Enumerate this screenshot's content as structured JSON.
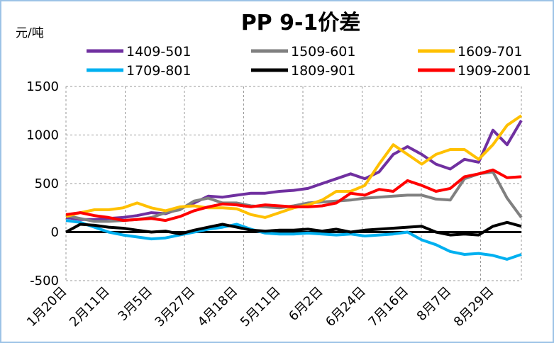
{
  "chart_data": {
    "type": "line",
    "title": "PP 9-1价差",
    "y_label": "元/吨",
    "categories": [
      "1月20日",
      null,
      null,
      "2月11日",
      null,
      null,
      "3月5日",
      null,
      null,
      "3月27日",
      null,
      null,
      "4月18日",
      null,
      null,
      "5月11日",
      null,
      null,
      "6月2日",
      null,
      null,
      "6月24日",
      null,
      null,
      "7月16日",
      null,
      null,
      "8月7日",
      null,
      null,
      "8月29日",
      null,
      null
    ],
    "series": [
      {
        "name": "1409-501",
        "color": "#7030a0",
        "values": [
          150,
          130,
          130,
          140,
          150,
          170,
          200,
          190,
          240,
          300,
          370,
          360,
          380,
          400,
          400,
          420,
          430,
          450,
          500,
          550,
          600,
          550,
          620,
          800,
          880,
          800,
          700,
          650,
          750,
          720,
          1050,
          900,
          1150
        ]
      },
      {
        "name": "1509-601",
        "color": "#808080",
        "values": [
          170,
          140,
          110,
          110,
          120,
          130,
          150,
          200,
          230,
          320,
          350,
          300,
          300,
          270,
          260,
          250,
          270,
          300,
          310,
          320,
          330,
          350,
          360,
          370,
          380,
          380,
          340,
          330,
          550,
          600,
          620,
          350,
          150
        ]
      },
      {
        "name": "1609-701",
        "color": "#ffc000",
        "values": [
          160,
          200,
          230,
          230,
          250,
          300,
          250,
          220,
          260,
          270,
          250,
          250,
          240,
          180,
          150,
          200,
          250,
          280,
          330,
          420,
          420,
          480,
          700,
          900,
          800,
          700,
          800,
          850,
          850,
          750,
          900,
          1100,
          1200
        ]
      },
      {
        "name": "1709-801",
        "color": "#00b0f0",
        "values": [
          120,
          100,
          50,
          0,
          -30,
          -50,
          -70,
          -60,
          -30,
          0,
          30,
          50,
          80,
          30,
          -10,
          -20,
          -20,
          -10,
          -20,
          -30,
          -20,
          -40,
          -30,
          -20,
          0,
          -80,
          -130,
          -200,
          -230,
          -220,
          -240,
          -280,
          -230
        ]
      },
      {
        "name": "1809-901",
        "color": "#000000",
        "values": [
          0,
          80,
          70,
          50,
          40,
          20,
          0,
          10,
          -20,
          20,
          50,
          80,
          50,
          20,
          10,
          20,
          20,
          30,
          10,
          30,
          0,
          20,
          30,
          40,
          50,
          60,
          0,
          -30,
          -20,
          -30,
          60,
          100,
          60
        ]
      },
      {
        "name": "1909-2001",
        "color": "#ff0000",
        "values": [
          180,
          200,
          170,
          150,
          120,
          130,
          140,
          120,
          160,
          220,
          260,
          290,
          280,
          260,
          280,
          270,
          260,
          260,
          270,
          300,
          400,
          380,
          440,
          420,
          530,
          480,
          420,
          450,
          570,
          600,
          640,
          560,
          570
        ]
      }
    ],
    "ylim": [
      -500,
      1500
    ],
    "yticks": [
      -500,
      0,
      500,
      1000,
      1500
    ],
    "grid": true
  }
}
